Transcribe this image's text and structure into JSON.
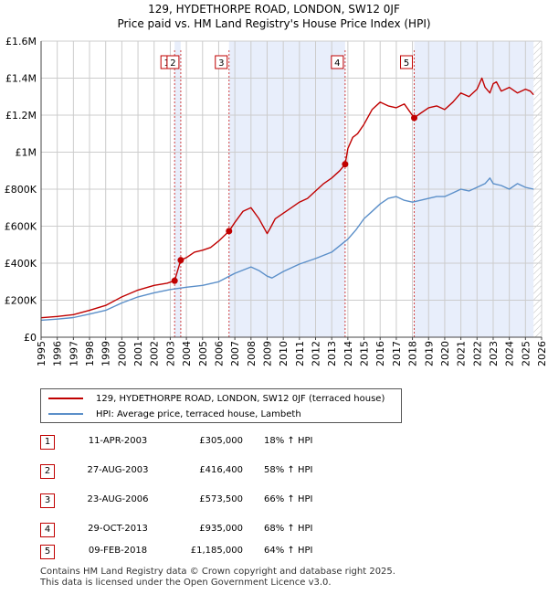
{
  "header": {
    "title_line1": "129, HYDETHORPE ROAD, LONDON, SW12 0JF",
    "title_line2": "Price paid vs. HM Land Registry's House Price Index (HPI)"
  },
  "colors": {
    "price_line": "#c00000",
    "hpi_line": "#5b8fc9",
    "shade": "#e8eefb",
    "marker_box": "#c00000",
    "grid": "#cccccc"
  },
  "chart_data": {
    "type": "line",
    "title": "129, HYDETHORPE ROAD, LONDON, SW12 0JF - Price paid vs. HM Land Registry's House Price Index (HPI)",
    "xlabel": "",
    "ylabel": "",
    "xlim": [
      1995,
      2026
    ],
    "ylim": [
      0,
      1600000
    ],
    "y_ticks": [
      0,
      200000,
      400000,
      600000,
      800000,
      1000000,
      1200000,
      1400000,
      1600000
    ],
    "y_tick_labels": [
      "£0",
      "£200K",
      "£400K",
      "£600K",
      "£800K",
      "£1M",
      "£1.2M",
      "£1.4M",
      "£1.6M"
    ],
    "x_ticks": [
      1995,
      1996,
      1997,
      1998,
      1999,
      2000,
      2001,
      2002,
      2003,
      2004,
      2005,
      2006,
      2007,
      2008,
      2009,
      2010,
      2011,
      2012,
      2013,
      2014,
      2015,
      2016,
      2017,
      2018,
      2019,
      2020,
      2021,
      2022,
      2023,
      2024,
      2025,
      2026
    ],
    "x_tick_labels": [
      "1995",
      "1996",
      "1997",
      "1998",
      "1999",
      "2000",
      "2001",
      "2002",
      "2003",
      "2004",
      "2005",
      "2006",
      "2007",
      "2008",
      "2009",
      "2010",
      "2011",
      "2012",
      "2013",
      "2014",
      "2015",
      "2016",
      "2017",
      "2018",
      "2019",
      "2020",
      "2021",
      "2022",
      "2023",
      "2024",
      "2025",
      "2026"
    ],
    "grid": true,
    "shaded_ranges": [
      [
        2003.27,
        2003.65
      ],
      [
        2006.64,
        2013.83
      ],
      [
        2018.11,
        2025.5
      ]
    ],
    "hatched_from": 2025.5,
    "series": [
      {
        "name": "129, HYDETHORPE ROAD, LONDON, SW12 0JF (terraced house)",
        "color": "#c00000",
        "x": [
          1995.0,
          1996.0,
          1997.0,
          1998.0,
          1999.0,
          2000.0,
          2001.0,
          2002.0,
          2002.8,
          2003.27,
          2003.65,
          2004.0,
          2004.5,
          2005.0,
          2005.5,
          2006.0,
          2006.64,
          2007.0,
          2007.5,
          2008.0,
          2008.5,
          2009.0,
          2009.2,
          2009.5,
          2010.0,
          2010.5,
          2011.0,
          2011.5,
          2012.0,
          2012.5,
          2013.0,
          2013.5,
          2013.83,
          2014.0,
          2014.3,
          2014.6,
          2015.0,
          2015.5,
          2016.0,
          2016.5,
          2017.0,
          2017.5,
          2018.11,
          2018.5,
          2019.0,
          2019.5,
          2020.0,
          2020.5,
          2021.0,
          2021.5,
          2022.0,
          2022.3,
          2022.5,
          2022.8,
          2023.0,
          2023.2,
          2023.5,
          2024.0,
          2024.5,
          2025.0,
          2025.3,
          2025.5
        ],
        "values": [
          105000,
          112000,
          122000,
          145000,
          172000,
          218000,
          255000,
          280000,
          292000,
          305000,
          416400,
          430000,
          460000,
          470000,
          485000,
          520000,
          573500,
          620000,
          680000,
          700000,
          640000,
          560000,
          590000,
          640000,
          670000,
          700000,
          730000,
          750000,
          790000,
          830000,
          860000,
          900000,
          935000,
          1020000,
          1080000,
          1100000,
          1150000,
          1230000,
          1270000,
          1250000,
          1240000,
          1260000,
          1185000,
          1210000,
          1240000,
          1250000,
          1230000,
          1270000,
          1320000,
          1300000,
          1340000,
          1400000,
          1350000,
          1320000,
          1370000,
          1380000,
          1330000,
          1350000,
          1320000,
          1340000,
          1330000,
          1310000
        ]
      },
      {
        "name": "HPI: Average price, terraced house, Lambeth",
        "color": "#5b8fc9",
        "x": [
          1995.0,
          1996.0,
          1997.0,
          1998.0,
          1999.0,
          2000.0,
          2001.0,
          2002.0,
          2003.0,
          2004.0,
          2005.0,
          2006.0,
          2007.0,
          2008.0,
          2008.5,
          2009.0,
          2009.3,
          2010.0,
          2011.0,
          2012.0,
          2013.0,
          2014.0,
          2014.5,
          2015.0,
          2015.5,
          2016.0,
          2016.5,
          2017.0,
          2017.5,
          2018.0,
          2018.5,
          2019.0,
          2019.5,
          2020.0,
          2020.5,
          2021.0,
          2021.5,
          2022.0,
          2022.5,
          2022.8,
          2023.0,
          2023.5,
          2024.0,
          2024.5,
          2025.0,
          2025.5
        ],
        "values": [
          92000,
          98000,
          106000,
          125000,
          145000,
          185000,
          218000,
          240000,
          258000,
          270000,
          280000,
          300000,
          345000,
          380000,
          360000,
          330000,
          320000,
          355000,
          395000,
          425000,
          460000,
          530000,
          580000,
          640000,
          680000,
          720000,
          750000,
          760000,
          740000,
          730000,
          740000,
          750000,
          760000,
          760000,
          780000,
          800000,
          790000,
          810000,
          830000,
          860000,
          830000,
          820000,
          800000,
          830000,
          810000,
          800000
        ]
      }
    ],
    "transactions": [
      {
        "label": "1",
        "x": 2003.27,
        "price": 305000
      },
      {
        "label": "2",
        "x": 2003.65,
        "price": 416400
      },
      {
        "label": "3",
        "x": 2006.64,
        "price": 573500
      },
      {
        "label": "4",
        "x": 2013.83,
        "price": 935000
      },
      {
        "label": "5",
        "x": 2018.11,
        "price": 1185000
      }
    ]
  },
  "legend": {
    "items": [
      {
        "label": "129, HYDETHORPE ROAD, LONDON, SW12 0JF (terraced house)",
        "color": "#c00000"
      },
      {
        "label": "HPI: Average price, terraced house, Lambeth",
        "color": "#5b8fc9"
      }
    ]
  },
  "table": {
    "rows": [
      {
        "num": "1",
        "date": "11-APR-2003",
        "price": "£305,000",
        "hpi": "18% ↑ HPI"
      },
      {
        "num": "2",
        "date": "27-AUG-2003",
        "price": "£416,400",
        "hpi": "58% ↑ HPI"
      },
      {
        "num": "3",
        "date": "23-AUG-2006",
        "price": "£573,500",
        "hpi": "66% ↑ HPI"
      },
      {
        "num": "4",
        "date": "29-OCT-2013",
        "price": "£935,000",
        "hpi": "68% ↑ HPI"
      },
      {
        "num": "5",
        "date": "09-FEB-2018",
        "price": "£1,185,000",
        "hpi": "64% ↑ HPI"
      }
    ]
  },
  "footer": {
    "line1": "Contains HM Land Registry data © Crown copyright and database right 2025.",
    "line2": "This data is licensed under the Open Government Licence v3.0."
  }
}
